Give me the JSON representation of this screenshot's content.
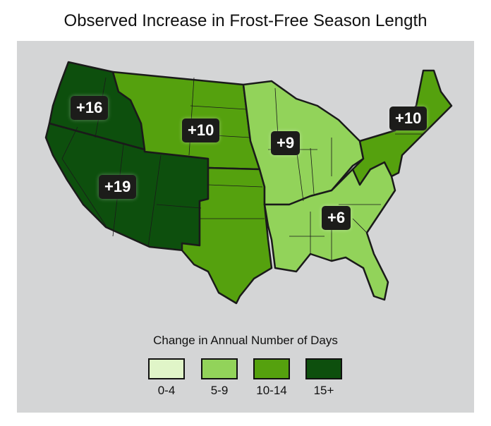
{
  "title": "Observed Increase in Frost-Free Season Length",
  "regions": [
    {
      "label": "+16",
      "bin": "15+"
    },
    {
      "label": "+19",
      "bin": "15+"
    },
    {
      "label": "+10",
      "bin": "10-14"
    },
    {
      "label": "+9",
      "bin": "5-9"
    },
    {
      "label": "+10",
      "bin": "10-14"
    },
    {
      "label": "+6",
      "bin": "5-9"
    }
  ],
  "legend": {
    "title": "Change in Annual Number of Days",
    "items": [
      {
        "label": "0-4",
        "color": "#e0f5c8"
      },
      {
        "label": "5-9",
        "color": "#92d35a"
      },
      {
        "label": "10-14",
        "color": "#55a10e"
      },
      {
        "label": "15+",
        "color": "#0d4f0d"
      }
    ]
  }
}
